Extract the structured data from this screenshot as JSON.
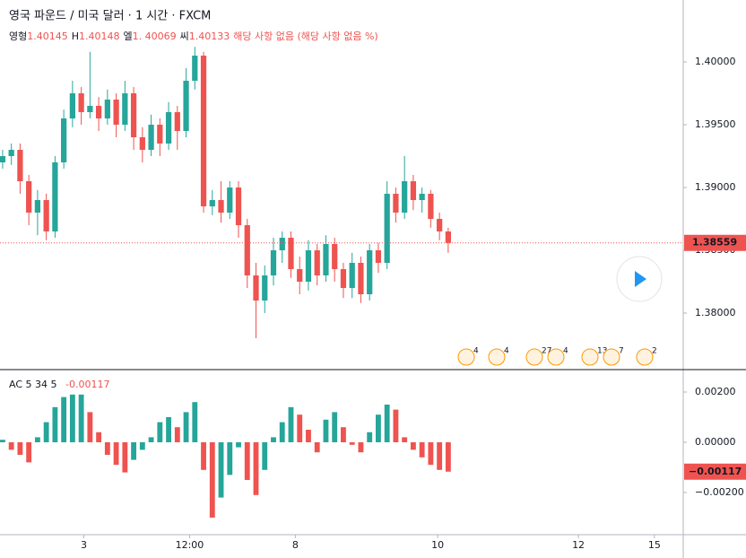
{
  "header": {
    "title": "영국 파운드 / 미국 달러 · 1 시간 · FXCM",
    "ohlc": [
      {
        "key": "영형",
        "value": "1.40145"
      },
      {
        "key": "H",
        "value": "1.40148"
      },
      {
        "key": "엘",
        "value": "1. 40069"
      },
      {
        "key": "씨",
        "value": "1.40133"
      }
    ],
    "change": "해당 사항 없음 (해당 사항 없음 %)"
  },
  "events": [
    "4",
    "4",
    "27",
    "4",
    "13",
    "7",
    "2"
  ],
  "chart_data": [
    {
      "type": "candlestick",
      "open": [
        1.392,
        1.3925,
        1.393,
        1.3905,
        1.388,
        1.389,
        1.3865,
        1.392,
        1.3955,
        1.3975,
        1.396,
        1.3965,
        1.3955,
        1.397,
        1.395,
        1.3975,
        1.394,
        1.393,
        1.395,
        1.3935,
        1.396,
        1.3945,
        1.3985,
        1.4005,
        1.3885,
        1.389,
        1.388,
        1.39,
        1.387,
        1.383,
        1.381,
        1.383,
        1.385,
        1.386,
        1.3835,
        1.3825,
        1.385,
        1.383,
        1.3855,
        1.3835,
        1.382,
        1.384,
        1.3815,
        1.385,
        1.384,
        1.3895,
        1.388,
        1.3905,
        1.389,
        1.3895,
        1.3875,
        1.3865
      ],
      "high": [
        1.393,
        1.3935,
        1.3935,
        1.391,
        1.3898,
        1.3895,
        1.3925,
        1.3962,
        1.3985,
        1.398,
        1.4008,
        1.3972,
        1.3978,
        1.3975,
        1.3985,
        1.398,
        1.3948,
        1.3958,
        1.3955,
        1.3968,
        1.3965,
        1.3995,
        1.4012,
        1.4008,
        1.3898,
        1.3905,
        1.3905,
        1.3905,
        1.3875,
        1.384,
        1.3838,
        1.386,
        1.3865,
        1.3865,
        1.3845,
        1.3858,
        1.3855,
        1.3862,
        1.386,
        1.384,
        1.3848,
        1.3845,
        1.3855,
        1.3856,
        1.3905,
        1.39,
        1.3925,
        1.391,
        1.39,
        1.3898,
        1.388,
        1.3868
      ],
      "low": [
        1.3915,
        1.3918,
        1.3895,
        1.387,
        1.3862,
        1.3858,
        1.386,
        1.3915,
        1.3948,
        1.395,
        1.3955,
        1.3945,
        1.395,
        1.394,
        1.3945,
        1.393,
        1.392,
        1.3925,
        1.3925,
        1.393,
        1.393,
        1.394,
        1.3978,
        1.388,
        1.3878,
        1.3872,
        1.3875,
        1.386,
        1.382,
        1.378,
        1.38,
        1.3822,
        1.384,
        1.3828,
        1.3815,
        1.3818,
        1.3822,
        1.3825,
        1.3825,
        1.3812,
        1.3812,
        1.3808,
        1.381,
        1.3832,
        1.3835,
        1.3872,
        1.3875,
        1.3882,
        1.388,
        1.3868,
        1.3858,
        1.3848
      ],
      "close": [
        1.3925,
        1.393,
        1.3905,
        1.388,
        1.389,
        1.3865,
        1.392,
        1.3955,
        1.3975,
        1.396,
        1.3965,
        1.3955,
        1.397,
        1.395,
        1.3975,
        1.394,
        1.393,
        1.395,
        1.3935,
        1.396,
        1.3945,
        1.3985,
        1.4005,
        1.3885,
        1.389,
        1.388,
        1.39,
        1.387,
        1.383,
        1.381,
        1.383,
        1.385,
        1.386,
        1.3835,
        1.3825,
        1.385,
        1.383,
        1.3855,
        1.3835,
        1.382,
        1.384,
        1.3815,
        1.385,
        1.384,
        1.3895,
        1.388,
        1.3905,
        1.389,
        1.3895,
        1.3875,
        1.3865,
        1.38559
      ],
      "up_color": "#26a69a",
      "down_color": "#ef5350",
      "ylim": [
        1.3755,
        1.40493
      ],
      "yticks": [
        {
          "value": 1.38,
          "label": "1.38000"
        },
        {
          "value": 1.385,
          "label": "1.38500"
        },
        {
          "value": 1.39,
          "label": "1.39000"
        },
        {
          "value": 1.395,
          "label": "1.39500"
        },
        {
          "value": 1.4,
          "label": "1.40000"
        }
      ],
      "last_price": 1.38559,
      "xlim": [
        -0.3,
        77.9
      ],
      "xticks": [
        {
          "value": 9.3,
          "label": "3"
        },
        {
          "value": 21.4,
          "label": "12:00"
        },
        {
          "value": 33.5,
          "label": "8"
        },
        {
          "value": 49.8,
          "label": "10"
        },
        {
          "value": 65.9,
          "label": "12"
        },
        {
          "value": 74.6,
          "label": "15"
        }
      ]
    },
    {
      "type": "histogram",
      "title": "AC 5 34 5",
      "last_value_label": "−0.00117",
      "values": [
        0.0001,
        -0.0003,
        -0.0005,
        -0.0008,
        0.0002,
        0.0008,
        0.0014,
        0.0018,
        0.0019,
        0.0019,
        0.0012,
        0.0004,
        -0.0005,
        -0.0009,
        -0.0012,
        -0.0007,
        -0.0003,
        0.0002,
        0.0008,
        0.001,
        0.0006,
        0.0012,
        0.0016,
        -0.0011,
        -0.003,
        -0.0022,
        -0.0013,
        -0.0002,
        -0.0015,
        -0.0021,
        -0.0011,
        0.0002,
        0.0008,
        0.0014,
        0.0011,
        0.0005,
        -0.0004,
        0.0009,
        0.0012,
        0.0006,
        -0.0001,
        -0.0004,
        0.0004,
        0.0011,
        0.0015,
        0.0013,
        0.0002,
        -0.0003,
        -0.0006,
        -0.0009,
        -0.0011,
        -0.00117
      ],
      "up_color": "#26a69a",
      "down_color": "#ef5350",
      "ylim": [
        -0.003643,
        0.002893
      ],
      "yticks": [
        {
          "value": -0.002,
          "label": "−0.00200"
        },
        {
          "value": 0,
          "label": "0.00000"
        },
        {
          "value": 0.002,
          "label": "0.00200"
        }
      ]
    }
  ]
}
